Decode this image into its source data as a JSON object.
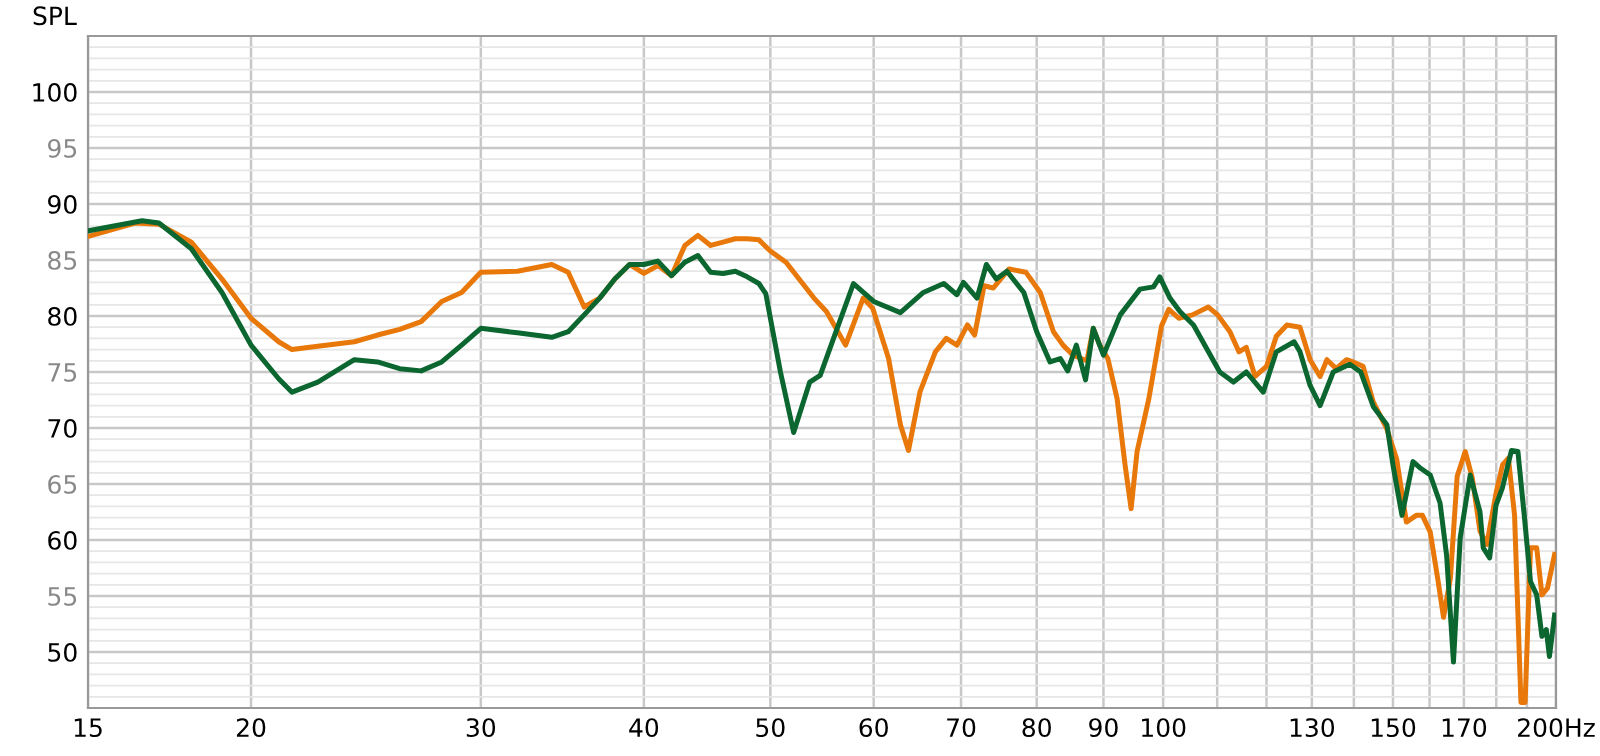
{
  "chart_data": {
    "type": "line",
    "ylabel": "SPL",
    "log": "x",
    "grid": true,
    "marker": "none",
    "line_style": "solid",
    "xlim": [
      15,
      200
    ],
    "ylim": [
      45,
      105
    ],
    "xticks": [
      15,
      20,
      30,
      40,
      50,
      60,
      70,
      80,
      90,
      100,
      {
        "value": 110,
        "label": null
      },
      {
        "value": 120,
        "label": null
      },
      130,
      {
        "value": 140,
        "label": null
      },
      150,
      {
        "value": 160,
        "label": null
      },
      170,
      {
        "value": 180,
        "label": null
      },
      {
        "value": 190,
        "label": null
      },
      {
        "value": 200,
        "label": "200Hz"
      }
    ],
    "yticks": [
      50,
      55,
      60,
      65,
      70,
      75,
      80,
      85,
      90,
      95,
      100
    ],
    "series": [
      {
        "color": "#e8780a",
        "x": [
          15,
          16.3,
          17,
          18,
          19,
          20,
          21,
          21.5,
          22.5,
          24,
          25,
          26,
          27,
          28,
          29,
          30,
          32,
          34,
          35,
          36,
          37,
          38,
          39,
          40,
          41,
          42,
          43,
          44,
          45,
          46,
          47,
          48,
          49,
          50,
          51.4,
          54,
          55.2,
          57.1,
          58.9,
          59.9,
          61.6,
          62.9,
          63.8,
          65.1,
          66.9,
          68.2,
          69.5,
          70.8,
          71.7,
          72.9,
          74.1,
          76.2,
          78.5,
          80.5,
          82.4,
          83.8,
          85.3,
          87.4,
          88.4,
          89.4,
          90.7,
          92.2,
          93.5,
          94.5,
          95.5,
          97.5,
          99.7,
          101,
          102.8,
          105.3,
          108.3,
          110.1,
          112.5,
          114.3,
          115.8,
          117.6,
          120,
          122.1,
          124.4,
          127.3,
          129.6,
          131.9,
          133.5,
          135.7,
          138.2,
          139.8,
          142.3,
          144.9,
          148.3,
          151,
          153.6,
          156.3,
          158,
          160.2,
          162.3,
          164,
          166,
          168,
          170.4,
          172.5,
          174.9,
          177,
          180,
          182,
          183.9,
          185.9,
          188,
          189.4,
          191.2,
          193.3,
          195.1,
          197,
          199.5
        ],
        "values": [
          87.1,
          88.3,
          88.2,
          86.6,
          83.3,
          79.8,
          77.7,
          77.0,
          77.3,
          77.7,
          78.3,
          78.8,
          79.5,
          81.3,
          82.1,
          83.9,
          84.0,
          84.6,
          83.9,
          80.8,
          81.6,
          83.3,
          84.6,
          83.8,
          84.5,
          83.6,
          86.3,
          87.2,
          86.3,
          86.6,
          86.9,
          86.9,
          86.8,
          85.8,
          84.8,
          81.6,
          80.4,
          77.4,
          81.6,
          80.7,
          76.2,
          70.3,
          68.0,
          73.2,
          76.8,
          78.0,
          77.4,
          79.2,
          78.3,
          82.7,
          82.5,
          84.2,
          83.9,
          82.1,
          78.6,
          77.4,
          76.5,
          76.0,
          78.9,
          77.4,
          76.2,
          72.6,
          66.7,
          62.8,
          67.9,
          72.6,
          79.1,
          80.6,
          79.8,
          80.1,
          80.8,
          80.1,
          78.6,
          76.8,
          77.2,
          74.6,
          75.5,
          78.2,
          79.2,
          79.0,
          76.1,
          74.6,
          76.1,
          75.3,
          76.1,
          75.9,
          75.5,
          72.3,
          70.0,
          67.2,
          61.6,
          62.2,
          62.2,
          60.7,
          56.6,
          53.1,
          56.6,
          65.7,
          67.9,
          65.6,
          60.8,
          59.6,
          64.3,
          66.7,
          67.3,
          62.2,
          45.5,
          45.5,
          59.3,
          59.3,
          55.1,
          55.7,
          58.7
        ]
      },
      {
        "color": "#0b6630",
        "x": [
          15,
          16.5,
          17,
          18,
          19,
          20,
          21,
          21.5,
          22.5,
          24,
          25,
          26,
          27,
          28,
          29,
          30,
          32,
          34,
          35,
          36,
          37,
          38,
          39,
          40,
          41,
          42,
          43,
          44,
          45,
          46,
          47,
          48,
          49,
          49.6,
          50.9,
          52.1,
          53.6,
          54.6,
          55.9,
          57.9,
          60,
          62.9,
          65.5,
          67.9,
          69.5,
          70.3,
          72,
          73.2,
          74.5,
          75.9,
          78.2,
          80,
          81.9,
          83.4,
          84.5,
          85.8,
          87.2,
          88.4,
          90,
          92.7,
          96,
          98.3,
          99.4,
          101.2,
          103,
          105.5,
          110.5,
          113.2,
          115.8,
          119.3,
          122.1,
          126,
          127.3,
          129.6,
          131.9,
          135,
          139,
          141.7,
          144.9,
          148.4,
          150,
          152.4,
          155.4,
          157.5,
          160.2,
          163,
          164.9,
          166.9,
          168.9,
          171.9,
          174.9,
          175.9,
          177.9,
          179.9,
          181.9,
          184.9,
          187,
          189.1,
          191.2,
          193.3,
          195.1,
          196.6,
          197.7,
          199.5
        ],
        "values": [
          87.6,
          88.5,
          88.3,
          86.0,
          82.1,
          77.4,
          74.4,
          73.2,
          74.1,
          76.1,
          75.9,
          75.3,
          75.1,
          75.9,
          77.4,
          78.9,
          78.5,
          78.1,
          78.6,
          80.1,
          81.6,
          83.3,
          84.6,
          84.6,
          84.9,
          83.6,
          84.8,
          85.4,
          83.9,
          83.8,
          84.0,
          83.5,
          82.9,
          82.0,
          75.0,
          69.6,
          74.1,
          74.7,
          78.0,
          82.9,
          81.3,
          80.3,
          82.1,
          82.9,
          81.9,
          83.0,
          81.6,
          84.6,
          83.3,
          84.0,
          82.1,
          78.6,
          75.9,
          76.2,
          75.1,
          77.4,
          74.3,
          78.9,
          76.5,
          80.1,
          82.4,
          82.6,
          83.5,
          81.6,
          80.4,
          79.2,
          75.0,
          74.1,
          75.0,
          73.2,
          76.8,
          77.7,
          76.8,
          73.8,
          72.0,
          75.0,
          75.7,
          75.0,
          71.9,
          70.3,
          66.7,
          62.2,
          67.0,
          66.4,
          65.8,
          63.3,
          58.6,
          49.1,
          60.2,
          65.8,
          62.5,
          59.3,
          58.4,
          63.1,
          64.6,
          68.0,
          67.9,
          62.2,
          56.3,
          55.1,
          51.4,
          52.0,
          49.6,
          53.3
        ]
      }
    ]
  }
}
